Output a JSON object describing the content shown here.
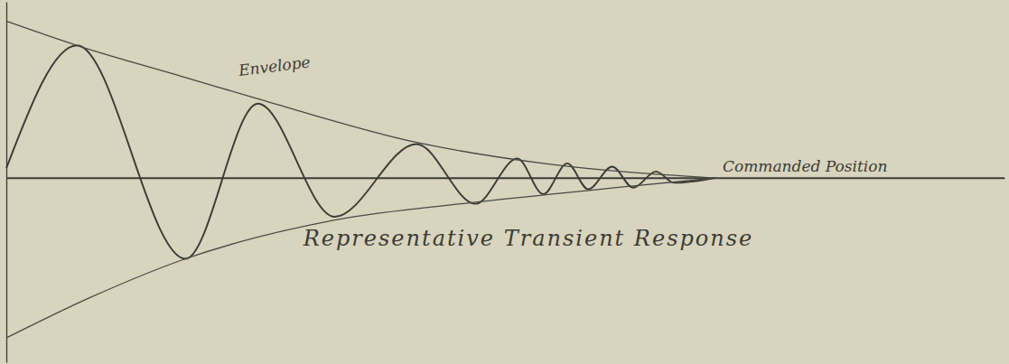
{
  "chart_data": {
    "type": "line",
    "title": "Representative Transient Response",
    "annotations": [
      "Envelope"
    ],
    "reference": {
      "label": "Commanded Position",
      "value": 0
    },
    "xlim": [
      0,
      100
    ],
    "ylim": [
      -1.14,
      1.09
    ],
    "xticks": [],
    "yticks": [],
    "tick_labels": false,
    "grid": false,
    "series": [
      {
        "color": "#3c3c36",
        "x": [
          0,
          7.07,
          17.95,
          25.2,
          32.9,
          41.1,
          47.0,
          51.2,
          53.8,
          56.2,
          58.3,
          60.7,
          62.8,
          65.1,
          66.9,
          71
        ],
        "values": [
          0.06,
          0.82,
          -0.5,
          0.46,
          -0.24,
          0.21,
          -0.16,
          0.12,
          -0.1,
          0.09,
          -0.07,
          0.07,
          -0.06,
          0.04,
          -0.03,
          0
        ]
      },
      {
        "color": "#4a4a44",
        "x": [
          0,
          7.07,
          17.5,
          25.2,
          41.1,
          53.8,
          71
        ],
        "values": [
          0.97,
          0.82,
          0.63,
          0.49,
          0.22,
          0.09,
          0
        ]
      },
      {
        "color": "#4a4a44",
        "x": [
          0,
          8.4,
          17.95,
          32.9,
          47.0,
          62.8,
          71
        ],
        "values": [
          -0.99,
          -0.74,
          -0.5,
          -0.26,
          -0.15,
          -0.05,
          0
        ]
      }
    ]
  }
}
